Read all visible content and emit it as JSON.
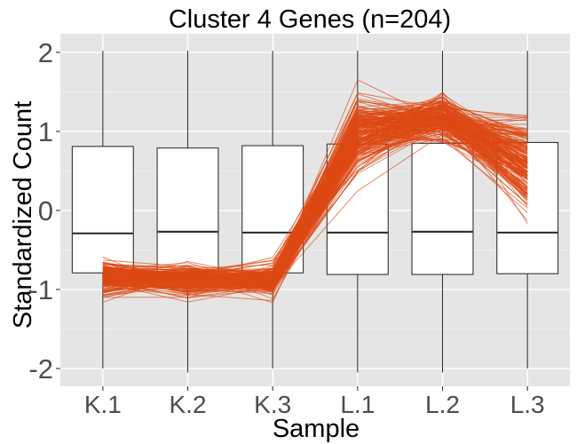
{
  "chart_data": {
    "type": "line",
    "title": "Cluster 4 Genes (n=204)",
    "xlabel": "Sample",
    "ylabel": "Standardized Count",
    "categories": [
      "K.1",
      "K.2",
      "K.3",
      "L.1",
      "L.2",
      "L.3"
    ],
    "ylim": [
      -2.25,
      2.25
    ],
    "yticks": [
      -2,
      -1,
      0,
      1,
      2
    ],
    "ytick_labels": [
      "-2",
      "-1",
      "0",
      "1",
      "2"
    ],
    "grid": true,
    "background": "#e5e5e5",
    "line_color": "#dd4814",
    "gene_count": 204,
    "mean_profile": [
      -0.85,
      -0.87,
      -0.88,
      0.95,
      1.18,
      0.55
    ],
    "profile_spread": [
      0.11,
      0.09,
      0.09,
      0.22,
      0.14,
      0.28
    ],
    "boxplots": [
      {
        "category": "K.1",
        "whisker_low": -2.0,
        "q1": -0.79,
        "median": -0.29,
        "q3": 0.81,
        "whisker_high": 2.02
      },
      {
        "category": "K.2",
        "whisker_low": -2.05,
        "q1": -0.78,
        "median": -0.27,
        "q3": 0.79,
        "whisker_high": 2.02
      },
      {
        "category": "K.3",
        "whisker_low": -2.0,
        "q1": -0.79,
        "median": -0.28,
        "q3": 0.82,
        "whisker_high": 2.02
      },
      {
        "category": "L.1",
        "whisker_low": -2.05,
        "q1": -0.81,
        "median": -0.28,
        "q3": 0.84,
        "whisker_high": 2.02
      },
      {
        "category": "L.2",
        "whisker_low": -2.05,
        "q1": -0.81,
        "median": -0.27,
        "q3": 0.85,
        "whisker_high": 2.02
      },
      {
        "category": "L.3",
        "whisker_low": -2.0,
        "q1": -0.8,
        "median": -0.28,
        "q3": 0.86,
        "whisker_high": 2.02
      }
    ]
  }
}
